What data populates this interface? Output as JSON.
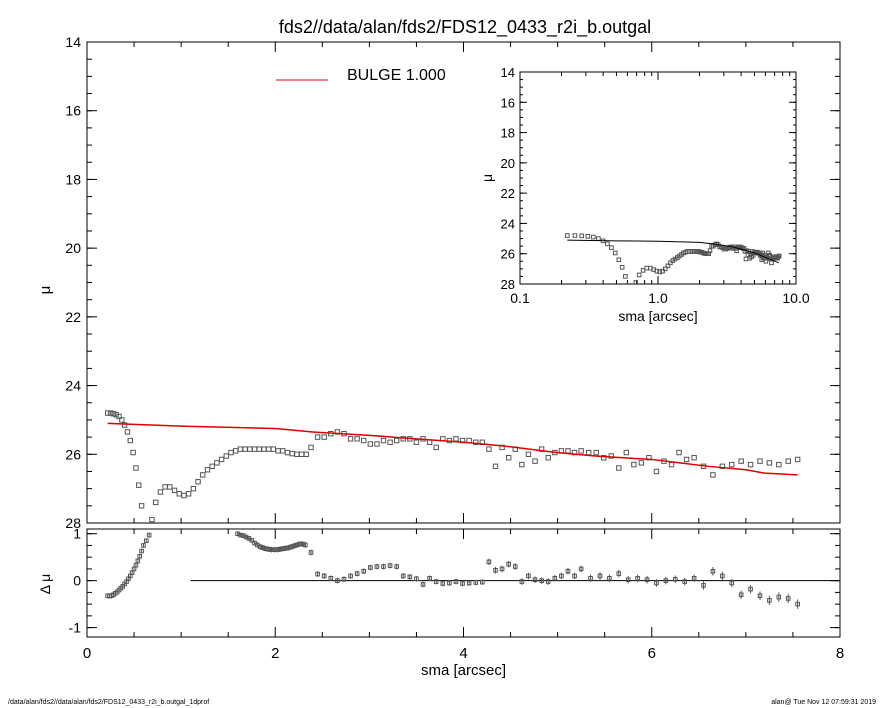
{
  "title": "fds2//data/alan/fds2/FDS12_0433_r2i_b.outgal",
  "footer": {
    "left": "/data/alan/fds2//data/alan/fds2/FDS12_0433_r2i_b.outgal_1dprof",
    "right": "alan@  Tue Nov 12 07:59:31 2019"
  },
  "colors": {
    "model": "#dd0000",
    "axes": "#000000",
    "points": "#555555"
  },
  "chart_data": [
    {
      "type": "scatter",
      "panel": "main",
      "xlabel": "",
      "ylabel": "μ",
      "xlim": [
        0,
        8
      ],
      "ylim": [
        28,
        14
      ],
      "y_inverted": true,
      "xticks": [
        "0",
        "2",
        "4",
        "6",
        "8"
      ],
      "yticks": [
        "14",
        "16",
        "18",
        "20",
        "22",
        "24",
        "26",
        "28"
      ],
      "legend": {
        "placement": "top-center",
        "entries": [
          {
            "label": "BULGE  1.000",
            "color": "#dd0000"
          }
        ]
      },
      "model_series": {
        "name": "BULGE",
        "x": [
          0.22,
          1.0,
          2.0,
          2.4,
          3.0,
          3.5,
          4.0,
          4.4,
          4.7,
          5.0,
          5.4,
          5.8,
          6.0,
          6.3,
          6.6,
          7.0,
          7.2,
          7.55
        ],
        "y": [
          25.1,
          25.18,
          25.25,
          25.35,
          25.45,
          25.55,
          25.65,
          25.75,
          25.85,
          25.95,
          26.05,
          26.12,
          26.15,
          26.25,
          26.35,
          26.45,
          26.55,
          26.6
        ]
      },
      "data_series": {
        "name": "",
        "x": [
          0.22,
          0.25,
          0.28,
          0.31,
          0.34,
          0.37,
          0.4,
          0.43,
          0.46,
          0.49,
          0.52,
          0.55,
          0.58,
          0.61,
          0.65,
          0.69,
          0.73,
          0.78,
          0.83,
          0.88,
          0.93,
          0.98,
          1.03,
          1.08,
          1.13,
          1.18,
          1.23,
          1.28,
          1.33,
          1.38,
          1.43,
          1.48,
          1.53,
          1.58,
          1.63,
          1.68,
          1.73,
          1.78,
          1.83,
          1.88,
          1.93,
          1.98,
          2.03,
          2.08,
          2.13,
          2.18,
          2.23,
          2.28,
          2.33,
          2.38,
          2.45,
          2.52,
          2.59,
          2.66,
          2.73,
          2.8,
          2.87,
          2.94,
          3.01,
          3.08,
          3.15,
          3.22,
          3.29,
          3.36,
          3.43,
          3.5,
          3.57,
          3.64,
          3.71,
          3.78,
          3.85,
          3.92,
          3.99,
          4.06,
          4.13,
          4.2,
          4.27,
          4.34,
          4.41,
          4.48,
          4.55,
          4.62,
          4.69,
          4.76,
          4.83,
          4.9,
          4.97,
          5.04,
          5.11,
          5.18,
          5.25,
          5.33,
          5.41,
          5.49,
          5.57,
          5.65,
          5.73,
          5.81,
          5.89,
          5.97,
          6.05,
          6.13,
          6.21,
          6.29,
          6.37,
          6.45,
          6.55,
          6.65,
          6.75,
          6.85,
          6.95,
          7.05,
          7.15,
          7.25,
          7.35,
          7.45,
          7.55
        ],
        "y": [
          24.8,
          24.8,
          24.82,
          24.85,
          24.9,
          25.0,
          25.15,
          25.35,
          25.6,
          25.95,
          26.4,
          26.9,
          27.5,
          28.1,
          28.3,
          27.9,
          27.4,
          27.1,
          26.95,
          26.95,
          27.05,
          27.15,
          27.2,
          27.15,
          27.0,
          26.8,
          26.6,
          26.45,
          26.35,
          26.25,
          26.15,
          26.05,
          25.95,
          25.9,
          25.85,
          25.85,
          25.85,
          25.85,
          25.85,
          25.85,
          25.85,
          25.85,
          25.9,
          25.9,
          25.95,
          25.98,
          26.0,
          26.0,
          26.0,
          25.8,
          25.5,
          25.5,
          25.4,
          25.35,
          25.4,
          25.55,
          25.55,
          25.6,
          25.7,
          25.7,
          25.6,
          25.65,
          25.6,
          25.55,
          25.55,
          25.65,
          25.55,
          25.65,
          25.8,
          25.55,
          25.6,
          25.55,
          25.6,
          25.6,
          25.65,
          25.65,
          25.85,
          26.35,
          25.8,
          26.1,
          25.85,
          26.3,
          26.0,
          26.2,
          25.85,
          26.1,
          25.95,
          25.9,
          25.9,
          25.95,
          25.9,
          25.95,
          25.95,
          26.1,
          26.05,
          26.4,
          25.95,
          26.3,
          26.25,
          26.1,
          26.5,
          26.2,
          26.3,
          25.95,
          26.15,
          26.1,
          26.35,
          26.6,
          26.35,
          26.3,
          26.2,
          26.3,
          26.2,
          26.25,
          26.3,
          26.2,
          26.15
        ]
      }
    },
    {
      "type": "scatter",
      "panel": "inset",
      "xlabel": "sma [arcsec]",
      "ylabel": "μ",
      "xscale": "log",
      "xlim": [
        0.1,
        10.0
      ],
      "ylim": [
        28,
        14
      ],
      "y_inverted": true,
      "xticks": [
        "0.1",
        "1.0",
        "10.0"
      ],
      "yticks": [
        "14",
        "16",
        "18",
        "20",
        "22",
        "24",
        "26",
        "28"
      ],
      "model_series": {
        "name": "BULGE",
        "x": [
          0.22,
          0.5,
          1.0,
          2.0,
          2.5,
          3.5,
          5.0,
          7.5
        ],
        "y": [
          25.1,
          25.15,
          25.18,
          25.25,
          25.35,
          25.55,
          25.95,
          26.6
        ]
      },
      "data_series": {
        "name": "",
        "x": [
          0.22,
          0.25,
          0.28,
          0.31,
          0.34,
          0.37,
          0.4,
          0.43,
          0.46,
          0.49,
          0.52,
          0.55,
          0.58,
          0.61,
          0.65,
          0.69,
          0.73,
          0.78,
          0.83,
          0.88,
          0.93,
          0.98,
          1.03,
          1.08,
          1.13,
          1.18,
          1.23,
          1.28,
          1.33,
          1.38,
          1.43,
          1.48,
          1.53,
          1.58,
          1.63,
          1.68,
          1.73,
          1.78,
          1.83,
          1.88,
          1.93,
          1.98,
          2.03,
          2.08,
          2.13,
          2.18,
          2.23,
          2.28,
          2.33,
          2.38,
          2.45,
          2.52,
          2.59,
          2.66,
          2.73,
          2.8,
          2.87,
          2.94,
          3.01,
          3.08,
          3.15,
          3.22,
          3.29,
          3.36,
          3.43,
          3.5,
          3.57,
          3.64,
          3.71,
          3.78,
          3.85,
          3.92,
          3.99,
          4.06,
          4.13,
          4.2,
          4.27,
          4.34,
          4.41,
          4.48,
          4.55,
          4.62,
          4.69,
          4.76,
          4.83,
          4.9,
          4.97,
          5.04,
          5.11,
          5.18,
          5.25,
          5.33,
          5.41,
          5.49,
          5.57,
          5.65,
          5.73,
          5.81,
          5.89,
          5.97,
          6.05,
          6.13,
          6.21,
          6.29,
          6.37,
          6.45,
          6.55,
          6.65,
          6.75,
          6.85,
          6.95,
          7.05,
          7.15,
          7.25,
          7.35,
          7.45,
          7.55
        ],
        "y": [
          24.8,
          24.8,
          24.82,
          24.85,
          24.9,
          25.0,
          25.15,
          25.35,
          25.6,
          25.95,
          26.4,
          26.9,
          27.5,
          28.1,
          28.3,
          27.9,
          27.4,
          27.1,
          26.95,
          26.95,
          27.05,
          27.15,
          27.2,
          27.15,
          27.0,
          26.8,
          26.6,
          26.45,
          26.35,
          26.25,
          26.15,
          26.05,
          25.95,
          25.9,
          25.85,
          25.85,
          25.85,
          25.85,
          25.85,
          25.85,
          25.85,
          25.85,
          25.9,
          25.9,
          25.95,
          25.98,
          26.0,
          26.0,
          26.0,
          25.8,
          25.5,
          25.5,
          25.4,
          25.35,
          25.4,
          25.55,
          25.55,
          25.6,
          25.7,
          25.7,
          25.6,
          25.65,
          25.6,
          25.55,
          25.55,
          25.65,
          25.55,
          25.65,
          25.8,
          25.55,
          25.6,
          25.55,
          25.6,
          25.6,
          25.65,
          25.65,
          25.85,
          26.35,
          25.8,
          26.1,
          25.85,
          26.3,
          26.0,
          26.2,
          25.85,
          26.1,
          25.95,
          25.9,
          25.9,
          25.95,
          25.9,
          25.95,
          25.95,
          26.1,
          26.05,
          26.4,
          25.95,
          26.3,
          26.25,
          26.1,
          26.5,
          26.2,
          26.3,
          25.95,
          26.15,
          26.1,
          26.35,
          26.6,
          26.35,
          26.3,
          26.2,
          26.3,
          26.2,
          26.25,
          26.3,
          26.2,
          26.15
        ]
      }
    },
    {
      "type": "scatter",
      "panel": "residual",
      "xlabel": "sma [arcsec]",
      "ylabel": "Δ μ",
      "xlim": [
        0,
        8
      ],
      "ylim": [
        -1.2,
        1.1
      ],
      "xticks": [
        "0",
        "2",
        "4",
        "6",
        "8"
      ],
      "yticks": [
        "1",
        "0",
        "-1"
      ],
      "reference_line": {
        "y": 0,
        "x_start": 1.1,
        "x_end": 8
      },
      "errorbars": true,
      "x": [
        0.22,
        0.24,
        0.26,
        0.28,
        0.3,
        0.32,
        0.34,
        0.36,
        0.38,
        0.4,
        0.42,
        0.44,
        0.46,
        0.48,
        0.5,
        0.52,
        0.54,
        0.56,
        0.58,
        0.6,
        0.63,
        0.66,
        1.6,
        1.63,
        1.66,
        1.69,
        1.72,
        1.75,
        1.78,
        1.81,
        1.84,
        1.87,
        1.9,
        1.93,
        1.96,
        1.99,
        2.02,
        2.05,
        2.08,
        2.11,
        2.14,
        2.17,
        2.2,
        2.23,
        2.26,
        2.29,
        2.32,
        2.38,
        2.45,
        2.52,
        2.59,
        2.66,
        2.73,
        2.8,
        2.87,
        2.94,
        3.01,
        3.08,
        3.15,
        3.22,
        3.29,
        3.36,
        3.43,
        3.5,
        3.57,
        3.64,
        3.71,
        3.78,
        3.85,
        3.92,
        3.99,
        4.06,
        4.13,
        4.2,
        4.27,
        4.34,
        4.41,
        4.48,
        4.55,
        4.62,
        4.69,
        4.76,
        4.83,
        4.9,
        4.97,
        5.04,
        5.11,
        5.18,
        5.25,
        5.35,
        5.45,
        5.55,
        5.65,
        5.75,
        5.85,
        5.95,
        6.05,
        6.15,
        6.25,
        6.35,
        6.45,
        6.55,
        6.65,
        6.75,
        6.85,
        6.95,
        7.05,
        7.15,
        7.25,
        7.35,
        7.45,
        7.55
      ],
      "y": [
        -0.32,
        -0.33,
        -0.32,
        -0.3,
        -0.27,
        -0.24,
        -0.2,
        -0.16,
        -0.12,
        -0.07,
        -0.02,
        0.04,
        0.1,
        0.17,
        0.25,
        0.33,
        0.42,
        0.52,
        0.63,
        0.75,
        0.85,
        0.97,
        1.0,
        0.97,
        0.96,
        0.93,
        0.9,
        0.86,
        0.8,
        0.76,
        0.72,
        0.7,
        0.68,
        0.67,
        0.66,
        0.66,
        0.66,
        0.67,
        0.68,
        0.69,
        0.7,
        0.72,
        0.74,
        0.76,
        0.78,
        0.78,
        0.76,
        0.6,
        0.14,
        0.1,
        0.05,
        0.0,
        0.03,
        0.1,
        0.15,
        0.2,
        0.28,
        0.3,
        0.3,
        0.32,
        0.3,
        0.1,
        0.08,
        0.04,
        -0.08,
        0.05,
        -0.02,
        -0.06,
        -0.05,
        -0.02,
        -0.06,
        -0.05,
        -0.04,
        -0.03,
        0.4,
        0.22,
        0.25,
        0.35,
        0.3,
        -0.02,
        0.1,
        0.02,
        0.0,
        -0.02,
        0.05,
        0.1,
        0.2,
        0.1,
        0.25,
        0.05,
        0.1,
        0.05,
        0.15,
        0.02,
        0.05,
        0.02,
        -0.05,
        0.0,
        0.03,
        -0.02,
        0.05,
        -0.1,
        0.2,
        0.1,
        -0.05,
        -0.3,
        -0.18,
        -0.32,
        -0.42,
        -0.35,
        -0.38,
        -0.5
      ],
      "y_err": [
        0.02,
        0.02,
        0.02,
        0.02,
        0.02,
        0.02,
        0.02,
        0.02,
        0.02,
        0.02,
        0.02,
        0.02,
        0.03,
        0.03,
        0.03,
        0.03,
        0.03,
        0.03,
        0.04,
        0.04,
        0.04,
        0.05,
        0.05,
        0.05,
        0.05,
        0.05,
        0.05,
        0.05,
        0.05,
        0.06,
        0.06,
        0.06,
        0.06,
        0.06,
        0.06,
        0.06,
        0.06,
        0.06,
        0.06,
        0.06,
        0.06,
        0.06,
        0.06,
        0.06,
        0.06,
        0.06,
        0.06,
        0.06,
        0.06,
        0.06,
        0.06,
        0.06,
        0.06,
        0.06,
        0.06,
        0.06,
        0.06,
        0.06,
        0.06,
        0.06,
        0.06,
        0.06,
        0.06,
        0.06,
        0.06,
        0.06,
        0.06,
        0.06,
        0.06,
        0.06,
        0.06,
        0.06,
        0.06,
        0.06,
        0.07,
        0.07,
        0.07,
        0.07,
        0.07,
        0.07,
        0.07,
        0.07,
        0.07,
        0.07,
        0.07,
        0.07,
        0.07,
        0.07,
        0.07,
        0.08,
        0.08,
        0.08,
        0.08,
        0.08,
        0.08,
        0.08,
        0.08,
        0.08,
        0.08,
        0.08,
        0.08,
        0.09,
        0.09,
        0.09,
        0.09,
        0.09,
        0.09,
        0.09,
        0.1,
        0.1,
        0.1,
        0.1
      ]
    }
  ]
}
